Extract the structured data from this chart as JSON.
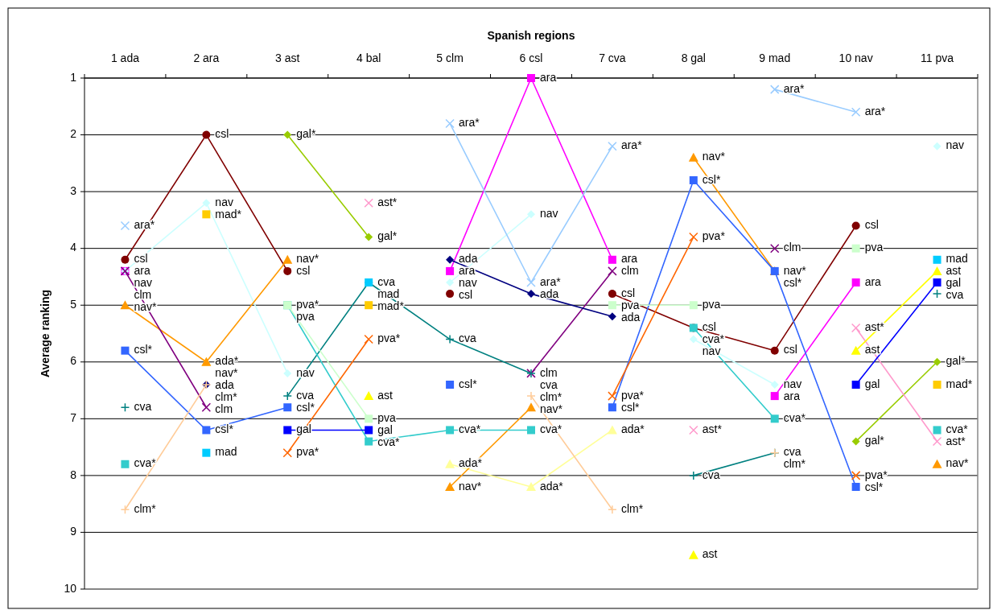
{
  "chart_data": {
    "type": "line",
    "xlabel": "Spanish regions",
    "ylabel": "Average ranking",
    "categories": [
      "1 ada",
      "2 ara",
      "3 ast",
      "4 bal",
      "5 clm",
      "6 csl",
      "7 cva",
      "8 gal",
      "9 mad",
      "10 nav",
      "11 pva"
    ],
    "ylim": [
      10,
      1
    ],
    "yticks": [
      1,
      2,
      3,
      4,
      5,
      6,
      7,
      8,
      9,
      10
    ],
    "grid": "y",
    "line_style": "solid",
    "series": [
      {
        "color": "#800000",
        "marker": "circle",
        "values": [
          4.2,
          2.0,
          4.4,
          null,
          4.8,
          null,
          4.8,
          5.4,
          5.8,
          3.6,
          null
        ],
        "value_labels": [
          "csl",
          "csl",
          "csl",
          null,
          "csl",
          null,
          "csl",
          "csl",
          "csl",
          "csl",
          null
        ]
      },
      {
        "color": "#ff00ff",
        "marker": "square",
        "values": [
          4.4,
          null,
          null,
          null,
          4.4,
          1.0,
          4.2,
          null,
          6.6,
          4.6,
          null
        ],
        "value_labels": [
          "ara",
          null,
          null,
          null,
          "ara",
          "ara",
          "ara",
          null,
          "ara",
          "ara",
          null
        ]
      },
      {
        "color": "#ccffff",
        "marker": "diamond",
        "values": [
          4.4,
          3.2,
          6.2,
          null,
          4.6,
          3.4,
          null,
          5.6,
          6.4,
          null,
          2.2
        ],
        "value_labels": [
          "nav",
          "nav",
          "nav",
          null,
          "nav",
          "nav",
          null,
          "nav",
          "nav",
          null,
          "nav"
        ]
      },
      {
        "type": "scatter",
        "color": "#ffcc00",
        "marker": "square",
        "values": [
          null,
          3.4,
          null,
          5.0,
          null,
          null,
          null,
          null,
          null,
          null,
          6.4
        ],
        "value_labels": [
          null,
          "mad*",
          null,
          "mad*",
          null,
          null,
          null,
          null,
          null,
          null,
          "mad*"
        ]
      },
      {
        "color": "#99cc00",
        "marker": "diamond",
        "values": [
          null,
          null,
          2.0,
          3.8,
          null,
          null,
          null,
          null,
          null,
          7.4,
          6.0
        ],
        "value_labels": [
          null,
          null,
          "gal*",
          "gal*",
          null,
          null,
          null,
          null,
          null,
          "gal*",
          "gal*"
        ]
      },
      {
        "color": "#ff99cc",
        "marker": "cross",
        "values": [
          null,
          null,
          null,
          3.2,
          null,
          null,
          null,
          7.2,
          null,
          5.4,
          7.4
        ],
        "value_labels": [
          null,
          null,
          null,
          "ast*",
          null,
          null,
          null,
          "ast*",
          null,
          "ast*",
          "ast*"
        ]
      },
      {
        "color": "#ffff99",
        "marker": "triangle",
        "values": [
          null,
          6.0,
          null,
          null,
          7.8,
          8.2,
          7.2,
          null,
          null,
          null,
          null
        ],
        "value_labels": [
          null,
          "ada*",
          null,
          null,
          "ada*",
          "ada*",
          "ada*",
          null,
          null,
          null,
          null
        ]
      },
      {
        "color": "#ff9900",
        "marker": "triangle",
        "values": [
          5.0,
          6.0,
          4.2,
          null,
          8.2,
          6.8,
          null,
          2.4,
          4.4,
          null,
          7.8
        ],
        "value_labels": [
          "nav*",
          "nav*",
          "nav*",
          null,
          "nav*",
          "nav*",
          null,
          "nav*",
          "nav*",
          null,
          "nav*"
        ]
      },
      {
        "color": "#3366ff",
        "marker": "square",
        "values": [
          5.8,
          7.2,
          6.8,
          null,
          6.4,
          null,
          6.8,
          2.8,
          4.4,
          8.2,
          null
        ],
        "value_labels": [
          "csl*",
          "csl*",
          "csl*",
          null,
          "csl*",
          null,
          "csl*",
          "csl*",
          "csl*",
          "csl*",
          null
        ]
      },
      {
        "color": "#800080",
        "marker": "cross",
        "values": [
          4.4,
          6.8,
          null,
          null,
          null,
          6.2,
          4.4,
          null,
          4.0,
          null,
          null
        ],
        "value_labels": [
          "clm",
          "clm",
          null,
          null,
          null,
          "clm",
          "clm",
          null,
          "clm",
          null,
          null
        ]
      },
      {
        "color": "#008080",
        "marker": "plus",
        "values": [
          6.8,
          null,
          6.6,
          4.6,
          5.6,
          6.2,
          null,
          8.0,
          7.6,
          null,
          4.8
        ],
        "value_labels": [
          "cva",
          null,
          "cva",
          "cva",
          "cva",
          "cva",
          null,
          "cva",
          "cva",
          null,
          "cva"
        ]
      },
      {
        "color": "#33cccc",
        "marker": "square",
        "values": [
          7.8,
          null,
          5.0,
          7.4,
          7.2,
          7.2,
          null,
          5.4,
          7.0,
          null,
          7.2
        ],
        "value_labels": [
          "cva*",
          null,
          "pva*",
          "cva*",
          "cva*",
          "cva*",
          null,
          "cva*",
          "cva*",
          null,
          "cva*"
        ]
      },
      {
        "color": "#ccffcc",
        "marker": "square",
        "values": [
          null,
          null,
          5.0,
          7.0,
          null,
          null,
          5.0,
          5.0,
          null,
          4.0,
          null
        ],
        "value_labels": [
          null,
          null,
          "pva",
          "pva",
          null,
          null,
          "pva",
          "pva",
          null,
          "pva",
          null
        ]
      },
      {
        "color": "#ff6600",
        "marker": "cross",
        "values": [
          null,
          null,
          7.6,
          5.6,
          null,
          null,
          6.6,
          3.8,
          null,
          8.0,
          null
        ],
        "value_labels": [
          null,
          null,
          "pva*",
          "pva*",
          null,
          null,
          "pva*",
          "pva*",
          null,
          "pva*",
          null
        ]
      },
      {
        "color": "#99ccff",
        "marker": "cross",
        "values": [
          3.6,
          null,
          null,
          null,
          1.8,
          4.6,
          2.2,
          null,
          1.2,
          1.6,
          null
        ],
        "value_labels": [
          "ara*",
          null,
          null,
          null,
          "ara*",
          "ara*",
          "ara*",
          null,
          "ara*",
          "ara*",
          null
        ]
      },
      {
        "color": "#0000ff",
        "marker": "square",
        "values": [
          null,
          null,
          7.2,
          7.2,
          null,
          null,
          null,
          null,
          null,
          6.4,
          4.6
        ],
        "value_labels": [
          null,
          null,
          "gal",
          "gal",
          null,
          null,
          null,
          null,
          null,
          "gal",
          "gal"
        ]
      },
      {
        "color": "#000080",
        "marker": "diamond",
        "values": [
          null,
          6.4,
          null,
          null,
          4.2,
          4.8,
          5.2,
          null,
          null,
          null,
          null
        ],
        "value_labels": [
          null,
          "ada",
          null,
          null,
          "ada",
          "ada",
          "ada",
          null,
          null,
          null,
          null
        ]
      },
      {
        "color": "#ffcc99",
        "marker": "plus",
        "values": [
          8.6,
          6.4,
          null,
          null,
          null,
          6.6,
          8.6,
          null,
          7.6,
          null,
          null
        ],
        "value_labels": [
          "clm*",
          "clm*",
          null,
          null,
          null,
          "clm*",
          "clm*",
          null,
          "clm*",
          null,
          null
        ]
      },
      {
        "color": "#ffff00",
        "marker": "triangle",
        "values": [
          null,
          null,
          null,
          6.6,
          null,
          null,
          null,
          9.4,
          null,
          5.8,
          4.4
        ],
        "value_labels": [
          null,
          null,
          null,
          "ast",
          null,
          null,
          null,
          "ast",
          null,
          "ast",
          "ast"
        ]
      },
      {
        "type": "scatter",
        "color": "#00ccff",
        "marker": "square",
        "values": [
          null,
          7.6,
          null,
          4.6,
          null,
          null,
          null,
          null,
          null,
          null,
          4.2
        ],
        "value_labels": [
          null,
          "mad",
          null,
          "mad",
          null,
          null,
          null,
          null,
          null,
          null,
          "mad"
        ]
      }
    ]
  }
}
